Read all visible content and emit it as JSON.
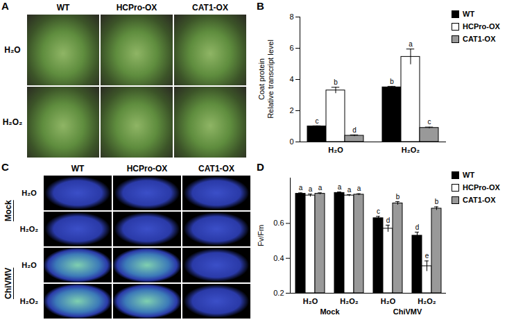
{
  "image_panels": [
    {
      "letter": "A",
      "columns": [
        "WT",
        "HCPro-OX",
        "CAT1-OX"
      ],
      "rows": [
        "H₂O",
        "H₂O₂"
      ]
    },
    {
      "letter": "C",
      "columns": [
        "WT",
        "HCPro-OX",
        "CAT1-OX"
      ],
      "row_groups": [
        {
          "name": "Mock",
          "rows": [
            "H₂O",
            "H₂O₂"
          ]
        },
        {
          "name": "ChiVMV",
          "rows": [
            "H₂O",
            "H₂O₂"
          ]
        }
      ]
    }
  ],
  "chart_data": [
    {
      "panel": "B",
      "type": "bar",
      "ylabel": "Coat protein\nRelative transcript level",
      "categories": [
        "H₂O",
        "H₂O₂"
      ],
      "series": [
        {
          "name": "WT",
          "color": "#000000",
          "values": [
            1.0,
            3.5
          ],
          "error": [
            0.03,
            0.06
          ],
          "letters": [
            "c",
            "b"
          ]
        },
        {
          "name": "HCPro-OX",
          "color": "#ffffff",
          "values": [
            3.3,
            5.45
          ],
          "error": [
            0.2,
            0.5
          ],
          "letters": [
            "b",
            "a"
          ]
        },
        {
          "name": "CAT1-OX",
          "color": "#999999",
          "values": [
            0.4,
            0.9
          ],
          "error": [
            0.05,
            0.05
          ],
          "letters": [
            "d",
            "c"
          ]
        }
      ],
      "ylim": [
        0,
        8
      ],
      "yticks": [
        0,
        2,
        4,
        6,
        8
      ],
      "legend": "right"
    },
    {
      "panel": "D",
      "type": "bar",
      "ylabel": "Fv/Fm",
      "categories": [
        "H₂O",
        "H₂O₂",
        "H₂O",
        "H₂O₂"
      ],
      "category_groups": [
        "Mock",
        "Mock",
        "ChiVMV",
        "ChiVMV"
      ],
      "series": [
        {
          "name": "WT",
          "color": "#000000",
          "values": [
            0.77,
            0.775,
            0.63,
            0.53
          ],
          "error": [
            0.005,
            0.005,
            0.01,
            0.02
          ],
          "letters": [
            "a",
            "a",
            "c",
            "d"
          ]
        },
        {
          "name": "HCPro-OX",
          "color": "#ffffff",
          "values": [
            0.76,
            0.76,
            0.57,
            0.355
          ],
          "error": [
            0.008,
            0.005,
            0.02,
            0.03
          ],
          "letters": [
            "a",
            "a",
            "d",
            "e"
          ]
        },
        {
          "name": "CAT1-OX",
          "color": "#999999",
          "values": [
            0.77,
            0.765,
            0.715,
            0.685
          ],
          "error": [
            0.005,
            0.005,
            0.01,
            0.01
          ],
          "letters": [
            "a",
            "a",
            "b",
            "b"
          ]
        }
      ],
      "ylim": [
        0.2,
        0.86
      ],
      "yticks": [
        0.2,
        0.4,
        0.6
      ],
      "legend": "right"
    }
  ]
}
